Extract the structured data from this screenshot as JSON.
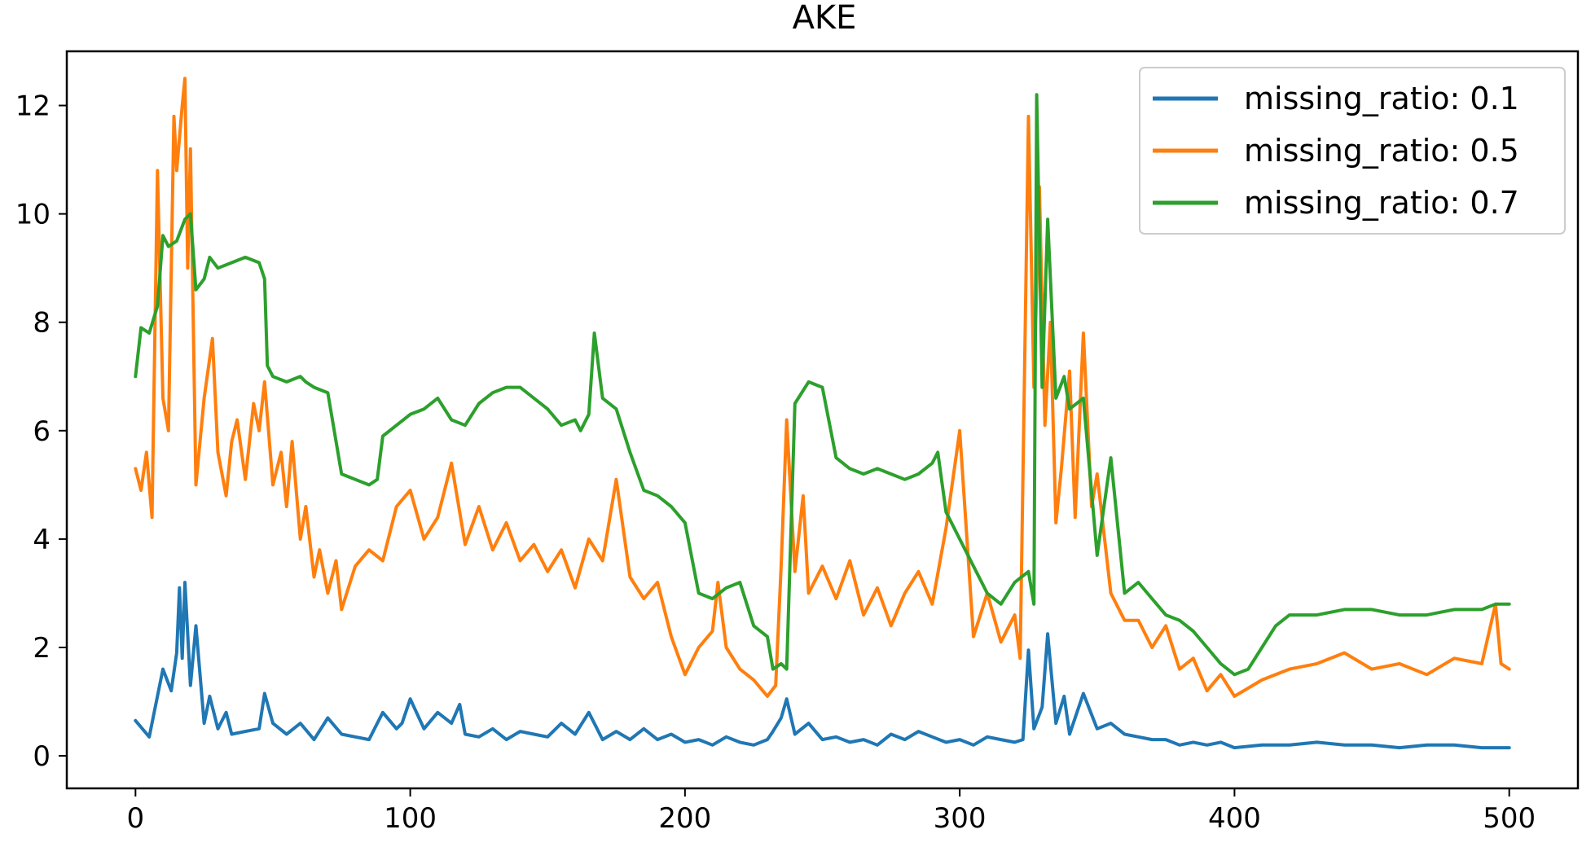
{
  "chart_data": {
    "type": "line",
    "title": "AKE",
    "xlabel": "",
    "ylabel": "",
    "xlim": [
      -25,
      525
    ],
    "ylim": [
      -0.6,
      13.0
    ],
    "xticks": [
      0,
      100,
      200,
      300,
      400,
      500
    ],
    "yticks": [
      0,
      2,
      4,
      6,
      8,
      10,
      12
    ],
    "grid": false,
    "legend_position": "top-right",
    "series": [
      {
        "name": "missing_ratio: 0.1",
        "color": "#1f77b4",
        "x": [
          0,
          5,
          10,
          13,
          15,
          16,
          17,
          18,
          20,
          22,
          25,
          27,
          30,
          33,
          35,
          40,
          45,
          47,
          50,
          55,
          60,
          65,
          70,
          75,
          80,
          85,
          90,
          95,
          97,
          100,
          105,
          110,
          115,
          118,
          120,
          125,
          130,
          135,
          140,
          145,
          150,
          155,
          160,
          165,
          170,
          175,
          180,
          185,
          190,
          195,
          200,
          205,
          210,
          215,
          220,
          225,
          230,
          232,
          235,
          237,
          240,
          245,
          250,
          255,
          260,
          265,
          270,
          275,
          280,
          285,
          290,
          295,
          300,
          305,
          310,
          315,
          320,
          323,
          325,
          327,
          330,
          332,
          335,
          338,
          340,
          345,
          350,
          355,
          360,
          365,
          370,
          375,
          380,
          385,
          390,
          395,
          400,
          410,
          420,
          430,
          440,
          450,
          460,
          470,
          480,
          490,
          500
        ],
        "values": [
          0.65,
          0.35,
          1.6,
          1.2,
          1.9,
          3.1,
          1.8,
          3.2,
          1.3,
          2.4,
          0.6,
          1.1,
          0.5,
          0.8,
          0.4,
          0.45,
          0.5,
          1.15,
          0.6,
          0.4,
          0.6,
          0.3,
          0.7,
          0.4,
          0.35,
          0.3,
          0.8,
          0.5,
          0.6,
          1.05,
          0.5,
          0.8,
          0.6,
          0.95,
          0.4,
          0.35,
          0.5,
          0.3,
          0.45,
          0.4,
          0.35,
          0.6,
          0.4,
          0.8,
          0.3,
          0.45,
          0.3,
          0.5,
          0.3,
          0.4,
          0.25,
          0.3,
          0.2,
          0.35,
          0.25,
          0.2,
          0.3,
          0.45,
          0.7,
          1.05,
          0.4,
          0.6,
          0.3,
          0.35,
          0.25,
          0.3,
          0.2,
          0.4,
          0.3,
          0.45,
          0.35,
          0.25,
          0.3,
          0.2,
          0.35,
          0.3,
          0.25,
          0.3,
          1.95,
          0.5,
          0.9,
          2.25,
          0.6,
          1.1,
          0.4,
          1.15,
          0.5,
          0.6,
          0.4,
          0.35,
          0.3,
          0.3,
          0.2,
          0.25,
          0.2,
          0.25,
          0.15,
          0.2,
          0.2,
          0.25,
          0.2,
          0.2,
          0.15,
          0.2,
          0.2,
          0.15,
          0.15
        ]
      },
      {
        "name": "missing_ratio: 0.5",
        "color": "#ff7f0e",
        "x": [
          0,
          2,
          4,
          6,
          8,
          10,
          12,
          14,
          15,
          17,
          18,
          19,
          20,
          22,
          25,
          28,
          30,
          33,
          35,
          37,
          40,
          43,
          45,
          47,
          50,
          53,
          55,
          57,
          60,
          62,
          65,
          67,
          70,
          73,
          75,
          80,
          85,
          90,
          95,
          100,
          105,
          110,
          115,
          120,
          125,
          130,
          135,
          140,
          145,
          150,
          155,
          160,
          165,
          170,
          175,
          180,
          185,
          190,
          195,
          200,
          205,
          210,
          212,
          215,
          220,
          225,
          230,
          233,
          235,
          237,
          240,
          243,
          245,
          250,
          255,
          260,
          265,
          270,
          275,
          280,
          285,
          290,
          295,
          300,
          305,
          310,
          315,
          320,
          322,
          325,
          327,
          329,
          331,
          333,
          335,
          337,
          340,
          342,
          345,
          348,
          350,
          355,
          360,
          365,
          370,
          375,
          380,
          385,
          390,
          395,
          400,
          410,
          420,
          430,
          440,
          450,
          460,
          470,
          480,
          490,
          495,
          497,
          500
        ],
        "values": [
          5.3,
          4.9,
          5.6,
          4.4,
          10.8,
          6.6,
          6.0,
          11.8,
          10.8,
          12.0,
          12.5,
          9.0,
          11.2,
          5.0,
          6.6,
          7.7,
          5.6,
          4.8,
          5.8,
          6.2,
          5.1,
          6.5,
          6.0,
          6.9,
          5.0,
          5.6,
          4.6,
          5.8,
          4.0,
          4.6,
          3.3,
          3.8,
          3.0,
          3.6,
          2.7,
          3.5,
          3.8,
          3.6,
          4.6,
          4.9,
          4.0,
          4.4,
          5.4,
          3.9,
          4.6,
          3.8,
          4.3,
          3.6,
          3.9,
          3.4,
          3.8,
          3.1,
          4.0,
          3.6,
          5.1,
          3.3,
          2.9,
          3.2,
          2.2,
          1.5,
          2.0,
          2.3,
          3.2,
          2.0,
          1.6,
          1.4,
          1.1,
          1.3,
          3.5,
          6.2,
          3.4,
          4.8,
          3.0,
          3.5,
          2.9,
          3.6,
          2.6,
          3.1,
          2.4,
          3.0,
          3.4,
          2.8,
          4.2,
          6.0,
          2.2,
          3.0,
          2.1,
          2.6,
          1.8,
          11.8,
          6.8,
          10.5,
          6.1,
          8.0,
          4.3,
          5.3,
          7.1,
          4.4,
          7.8,
          4.6,
          5.2,
          3.0,
          2.5,
          2.5,
          2.0,
          2.4,
          1.6,
          1.8,
          1.2,
          1.5,
          1.1,
          1.4,
          1.6,
          1.7,
          1.9,
          1.6,
          1.7,
          1.5,
          1.8,
          1.7,
          2.8,
          1.7,
          1.6
        ]
      },
      {
        "name": "missing_ratio: 0.7",
        "color": "#2ca02c",
        "x": [
          0,
          2,
          5,
          8,
          10,
          12,
          15,
          18,
          20,
          22,
          25,
          27,
          30,
          35,
          40,
          45,
          47,
          48,
          50,
          55,
          60,
          62,
          65,
          70,
          75,
          80,
          85,
          88,
          90,
          95,
          100,
          105,
          110,
          115,
          120,
          125,
          130,
          135,
          140,
          145,
          150,
          155,
          160,
          162,
          165,
          167,
          170,
          175,
          180,
          185,
          190,
          195,
          200,
          205,
          210,
          215,
          220,
          225,
          230,
          232,
          235,
          237,
          240,
          245,
          250,
          255,
          260,
          265,
          270,
          275,
          280,
          285,
          290,
          292,
          295,
          300,
          305,
          310,
          315,
          320,
          325,
          327,
          328,
          330,
          332,
          335,
          338,
          340,
          345,
          350,
          355,
          360,
          365,
          370,
          375,
          380,
          385,
          390,
          395,
          400,
          405,
          410,
          415,
          420,
          430,
          440,
          450,
          460,
          470,
          480,
          490,
          495,
          500
        ],
        "values": [
          7.0,
          7.9,
          7.8,
          8.3,
          9.6,
          9.4,
          9.5,
          9.9,
          10.0,
          8.6,
          8.8,
          9.2,
          9.0,
          9.1,
          9.2,
          9.1,
          8.8,
          7.2,
          7.0,
          6.9,
          7.0,
          6.9,
          6.8,
          6.7,
          5.2,
          5.1,
          5.0,
          5.1,
          5.9,
          6.1,
          6.3,
          6.4,
          6.6,
          6.2,
          6.1,
          6.5,
          6.7,
          6.8,
          6.8,
          6.6,
          6.4,
          6.1,
          6.2,
          6.0,
          6.3,
          7.8,
          6.6,
          6.4,
          5.6,
          4.9,
          4.8,
          4.6,
          4.3,
          3.0,
          2.9,
          3.1,
          3.2,
          2.4,
          2.2,
          1.6,
          1.7,
          1.6,
          6.5,
          6.9,
          6.8,
          5.5,
          5.3,
          5.2,
          5.3,
          5.2,
          5.1,
          5.2,
          5.4,
          5.6,
          4.5,
          4.0,
          3.5,
          3.0,
          2.8,
          3.2,
          3.4,
          2.8,
          12.2,
          6.8,
          9.9,
          6.6,
          7.0,
          6.4,
          6.6,
          3.7,
          5.5,
          3.0,
          3.2,
          2.9,
          2.6,
          2.5,
          2.3,
          2.0,
          1.7,
          1.5,
          1.6,
          2.0,
          2.4,
          2.6,
          2.6,
          2.7,
          2.7,
          2.6,
          2.6,
          2.7,
          2.7,
          2.8,
          2.8
        ]
      }
    ]
  }
}
